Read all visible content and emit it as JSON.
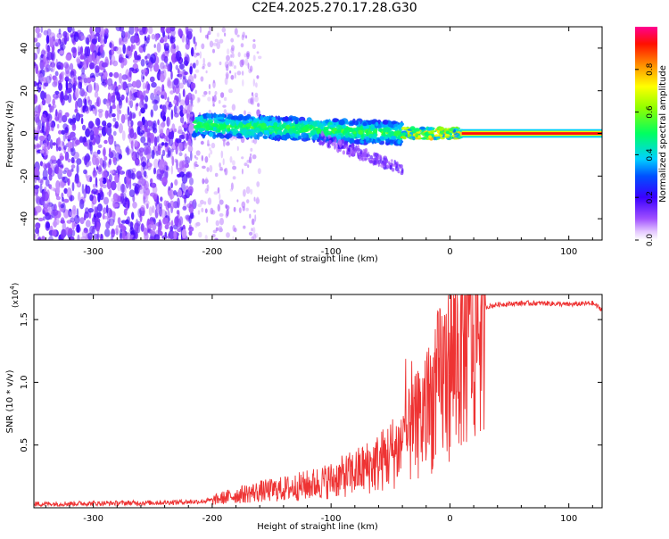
{
  "figure": {
    "title": "C2E4.2025.270.17.28.G30"
  },
  "chart_data": [
    {
      "type": "heatmap",
      "name": "spectrogram",
      "xlabel": "Height of straight line (km)",
      "ylabel": "Frequency (Hz)",
      "xlim": [
        -350,
        128
      ],
      "ylim": [
        -50,
        50
      ],
      "x_ticks": [
        -300,
        -200,
        -100,
        0,
        100
      ],
      "x_tick_labels": [
        "-300",
        "-200",
        "-100",
        "0",
        "100"
      ],
      "y_ticks": [
        -40,
        -20,
        0,
        20,
        40
      ],
      "y_tick_labels": [
        "-40",
        "-20",
        "0",
        "20",
        "40"
      ],
      "colorbar": {
        "label": "Normalized spectral amplitude",
        "range": [
          0,
          1
        ],
        "ticks": [
          0.0,
          0.2,
          0.4,
          0.6,
          0.8
        ],
        "tick_labels": [
          "0.0",
          "0.2",
          "0.4",
          "0.6",
          "0.8"
        ],
        "colors": [
          "#ffffff",
          "#c8a0ff",
          "#8a2be2",
          "#5a00e0",
          "#0000ff",
          "#00c8ff",
          "#00ff80",
          "#80ff00",
          "#ffff00",
          "#ff8000",
          "#ff0000",
          "#ff0090"
        ]
      },
      "regions": [
        {
          "description_x": [
            -350,
            -215
          ],
          "freq_range": [
            -50,
            50
          ],
          "amplitude": 0.08
        },
        {
          "description_x": [
            -215,
            -160
          ],
          "freq_range": [
            -50,
            50
          ],
          "amplitude": 0.03
        },
        {
          "description_x": [
            -215,
            -40
          ],
          "freq_range": [
            -5,
            7
          ],
          "amplitude": 0.35
        },
        {
          "description_x": [
            -40,
            10
          ],
          "freq_range": [
            -3,
            3
          ],
          "amplitude": 0.6
        },
        {
          "description_x": [
            10,
            128
          ],
          "freq_range": [
            -1.5,
            1.5
          ],
          "amplitude": 0.95
        }
      ]
    },
    {
      "type": "line",
      "name": "snr",
      "xlabel": "Height of straight line (km)",
      "ylabel": "SNR (10 * v/v)",
      "y_scale_label": "(x10",
      "y_scale_exp": "4",
      "y_scale_close": ")",
      "xlim": [
        -350,
        128
      ],
      "ylim": [
        0,
        17000
      ],
      "x_ticks": [
        -300,
        -200,
        -100,
        0,
        100
      ],
      "x_tick_labels": [
        "-300",
        "-200",
        "-100",
        "0",
        "100"
      ],
      "y_ticks": [
        5000,
        10000,
        15000
      ],
      "y_tick_labels": [
        "0.5",
        "1.0",
        "1.5"
      ],
      "line_color": "#ee3333",
      "series": [
        {
          "name": "SNR",
          "x": [
            -350,
            -300,
            -250,
            -210,
            -200,
            -180,
            -160,
            -140,
            -120,
            -100,
            -80,
            -60,
            -40,
            -30,
            -20,
            -10,
            0,
            10,
            20,
            30,
            40,
            60,
            80,
            100,
            120,
            128
          ],
          "values": [
            300,
            350,
            400,
            500,
            600,
            1000,
            1300,
            1500,
            1800,
            2200,
            2800,
            3600,
            5000,
            6200,
            7500,
            9500,
            11500,
            13000,
            14800,
            16000,
            16200,
            16300,
            16300,
            16200,
            16300,
            15800
          ]
        }
      ]
    }
  ]
}
